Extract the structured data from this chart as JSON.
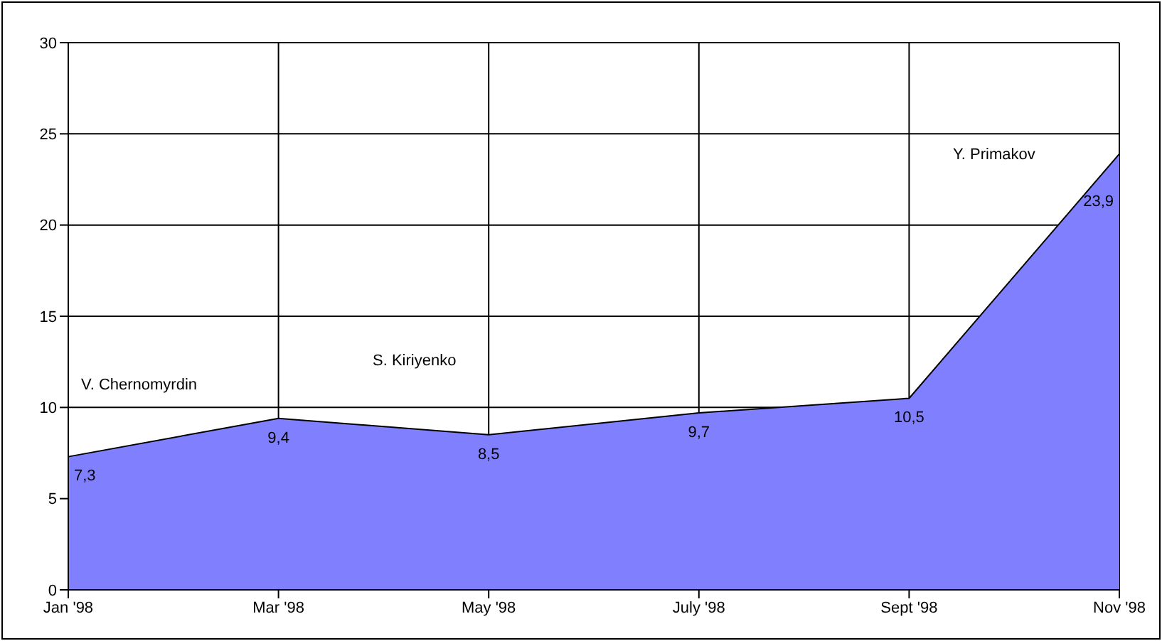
{
  "chart_data": {
    "type": "area",
    "categories": [
      "Jan '98",
      "Mar '98",
      "May '98",
      "July '98",
      "Sept '98",
      "Nov '98"
    ],
    "series": [
      {
        "color": "#8080ff",
        "values": [
          7.3,
          9.4,
          8.5,
          9.7,
          10.5,
          23.9
        ],
        "value_labels": [
          "7,3",
          "9,4",
          "8,5",
          "9,7",
          "10,5",
          "23,9"
        ]
      }
    ],
    "ylim": [
      0,
      30
    ],
    "yticks": [
      0,
      5,
      10,
      15,
      20,
      25,
      30
    ],
    "grid": true,
    "legend": false,
    "annotations": [
      "V. Chernomyrdin",
      "S. Kiriyenko",
      "Y. Primakov"
    ]
  }
}
